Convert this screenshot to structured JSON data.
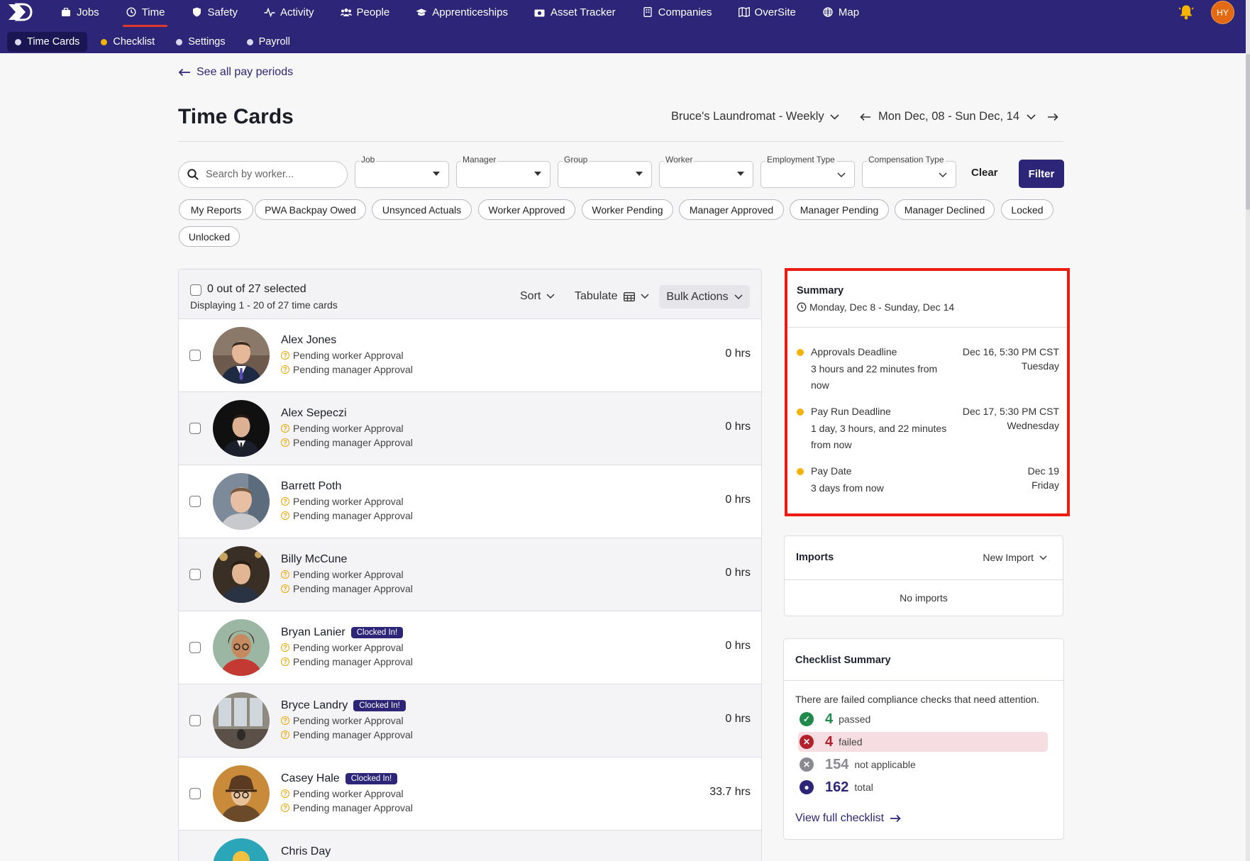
{
  "nav": {
    "items": [
      {
        "label": "Jobs",
        "icon": "briefcase-icon"
      },
      {
        "label": "Time",
        "icon": "clock-icon"
      },
      {
        "label": "Safety",
        "icon": "shield-icon"
      },
      {
        "label": "Activity",
        "icon": "activity-icon"
      },
      {
        "label": "People",
        "icon": "people-icon"
      },
      {
        "label": "Apprenticeships",
        "icon": "graduation-cap-icon"
      },
      {
        "label": "Asset Tracker",
        "icon": "camera-icon"
      },
      {
        "label": "Companies",
        "icon": "building-icon"
      },
      {
        "label": "OverSite",
        "icon": "map-book-icon"
      },
      {
        "label": "Map",
        "icon": "globe-icon"
      }
    ],
    "active": "Time",
    "user_initials": "HY"
  },
  "subnav": {
    "items": [
      {
        "label": "Time Cards"
      },
      {
        "label": "Checklist"
      },
      {
        "label": "Settings"
      },
      {
        "label": "Payroll"
      }
    ]
  },
  "page": {
    "back_link": "See all pay periods",
    "title": "Time Cards",
    "pay_schedule": "Bruce's Laundromat - Weekly",
    "date_range": "Mon Dec, 08 - Sun Dec, 14"
  },
  "filters": {
    "search_placeholder": "Search by worker...",
    "dropdowns": [
      {
        "label": "Job"
      },
      {
        "label": "Manager"
      },
      {
        "label": "Group"
      },
      {
        "label": "Worker"
      },
      {
        "label": "Employment Type"
      },
      {
        "label": "Compensation Type"
      }
    ],
    "clear_label": "Clear",
    "filter_label": "Filter",
    "chips": [
      "My Reports",
      "PWA Backpay Owed",
      "Unsynced Actuals",
      "Worker Approved",
      "Worker Pending",
      "Manager Approved",
      "Manager Pending",
      "Manager Declined",
      "Locked",
      "Unlocked"
    ]
  },
  "list": {
    "selected_text": "0 out of 27 selected",
    "displaying_text": "Displaying 1 - 20 of 27 time cards",
    "sort_label": "Sort",
    "tabulate_label": "Tabulate",
    "bulk_label": "Bulk Actions",
    "rows": [
      {
        "name": "Alex Jones",
        "status1": "Pending worker Approval",
        "status2": "Pending manager Approval",
        "hours": "0 hrs",
        "badge": ""
      },
      {
        "name": "Alex Sepeczi",
        "status1": "Pending worker Approval",
        "status2": "Pending manager Approval",
        "hours": "0 hrs",
        "badge": ""
      },
      {
        "name": "Barrett Poth",
        "status1": "Pending worker Approval",
        "status2": "Pending manager Approval",
        "hours": "0 hrs",
        "badge": ""
      },
      {
        "name": "Billy McCune",
        "status1": "Pending worker Approval",
        "status2": "Pending manager Approval",
        "hours": "0 hrs",
        "badge": ""
      },
      {
        "name": "Bryan Lanier",
        "status1": "Pending worker Approval",
        "status2": "Pending manager Approval",
        "hours": "0 hrs",
        "badge": "Clocked In!"
      },
      {
        "name": "Bryce Landry",
        "status1": "Pending worker Approval",
        "status2": "Pending manager Approval",
        "hours": "0 hrs",
        "badge": "Clocked In!"
      },
      {
        "name": "Casey Hale",
        "status1": "Pending worker Approval",
        "status2": "Pending manager Approval",
        "hours": "33.7 hrs",
        "badge": "Clocked In!"
      },
      {
        "name": "Chris Day",
        "status1": "",
        "status2": "",
        "hours": "",
        "badge": ""
      }
    ]
  },
  "summary": {
    "title": "Summary",
    "range": "Monday, Dec 8 - Sunday, Dec 14",
    "deadlines": [
      {
        "name": "Approvals Deadline",
        "desc": "3 hours and 22 minutes from now",
        "date": "Dec 16, 5:30 PM CST",
        "day": "Tuesday"
      },
      {
        "name": "Pay Run Deadline",
        "desc": "1 day, 3 hours, and 22 minutes from now",
        "date": "Dec 17, 5:30 PM CST",
        "day": "Wednesday"
      },
      {
        "name": "Pay Date",
        "desc": "3 days from now",
        "date": "Dec 19",
        "day": "Friday"
      }
    ]
  },
  "imports": {
    "title": "Imports",
    "new_label": "New Import",
    "empty_text": "No imports"
  },
  "checklist": {
    "title": "Checklist Summary",
    "message": "There are failed compliance checks that need attention.",
    "stats": [
      {
        "value": "4",
        "label": "passed",
        "color": "#1f8a4c"
      },
      {
        "value": "4",
        "label": "failed",
        "color": "#b3202c"
      },
      {
        "value": "154",
        "label": "not applicable",
        "color": "#8a8a92"
      },
      {
        "value": "162",
        "label": "total",
        "color": "#2d2678"
      }
    ],
    "view_label": "View full checklist"
  },
  "colors": {
    "brand": "#2d2678",
    "accent": "#e03a2f",
    "warning": "#f5b301",
    "highlight": "#ec1d10"
  }
}
